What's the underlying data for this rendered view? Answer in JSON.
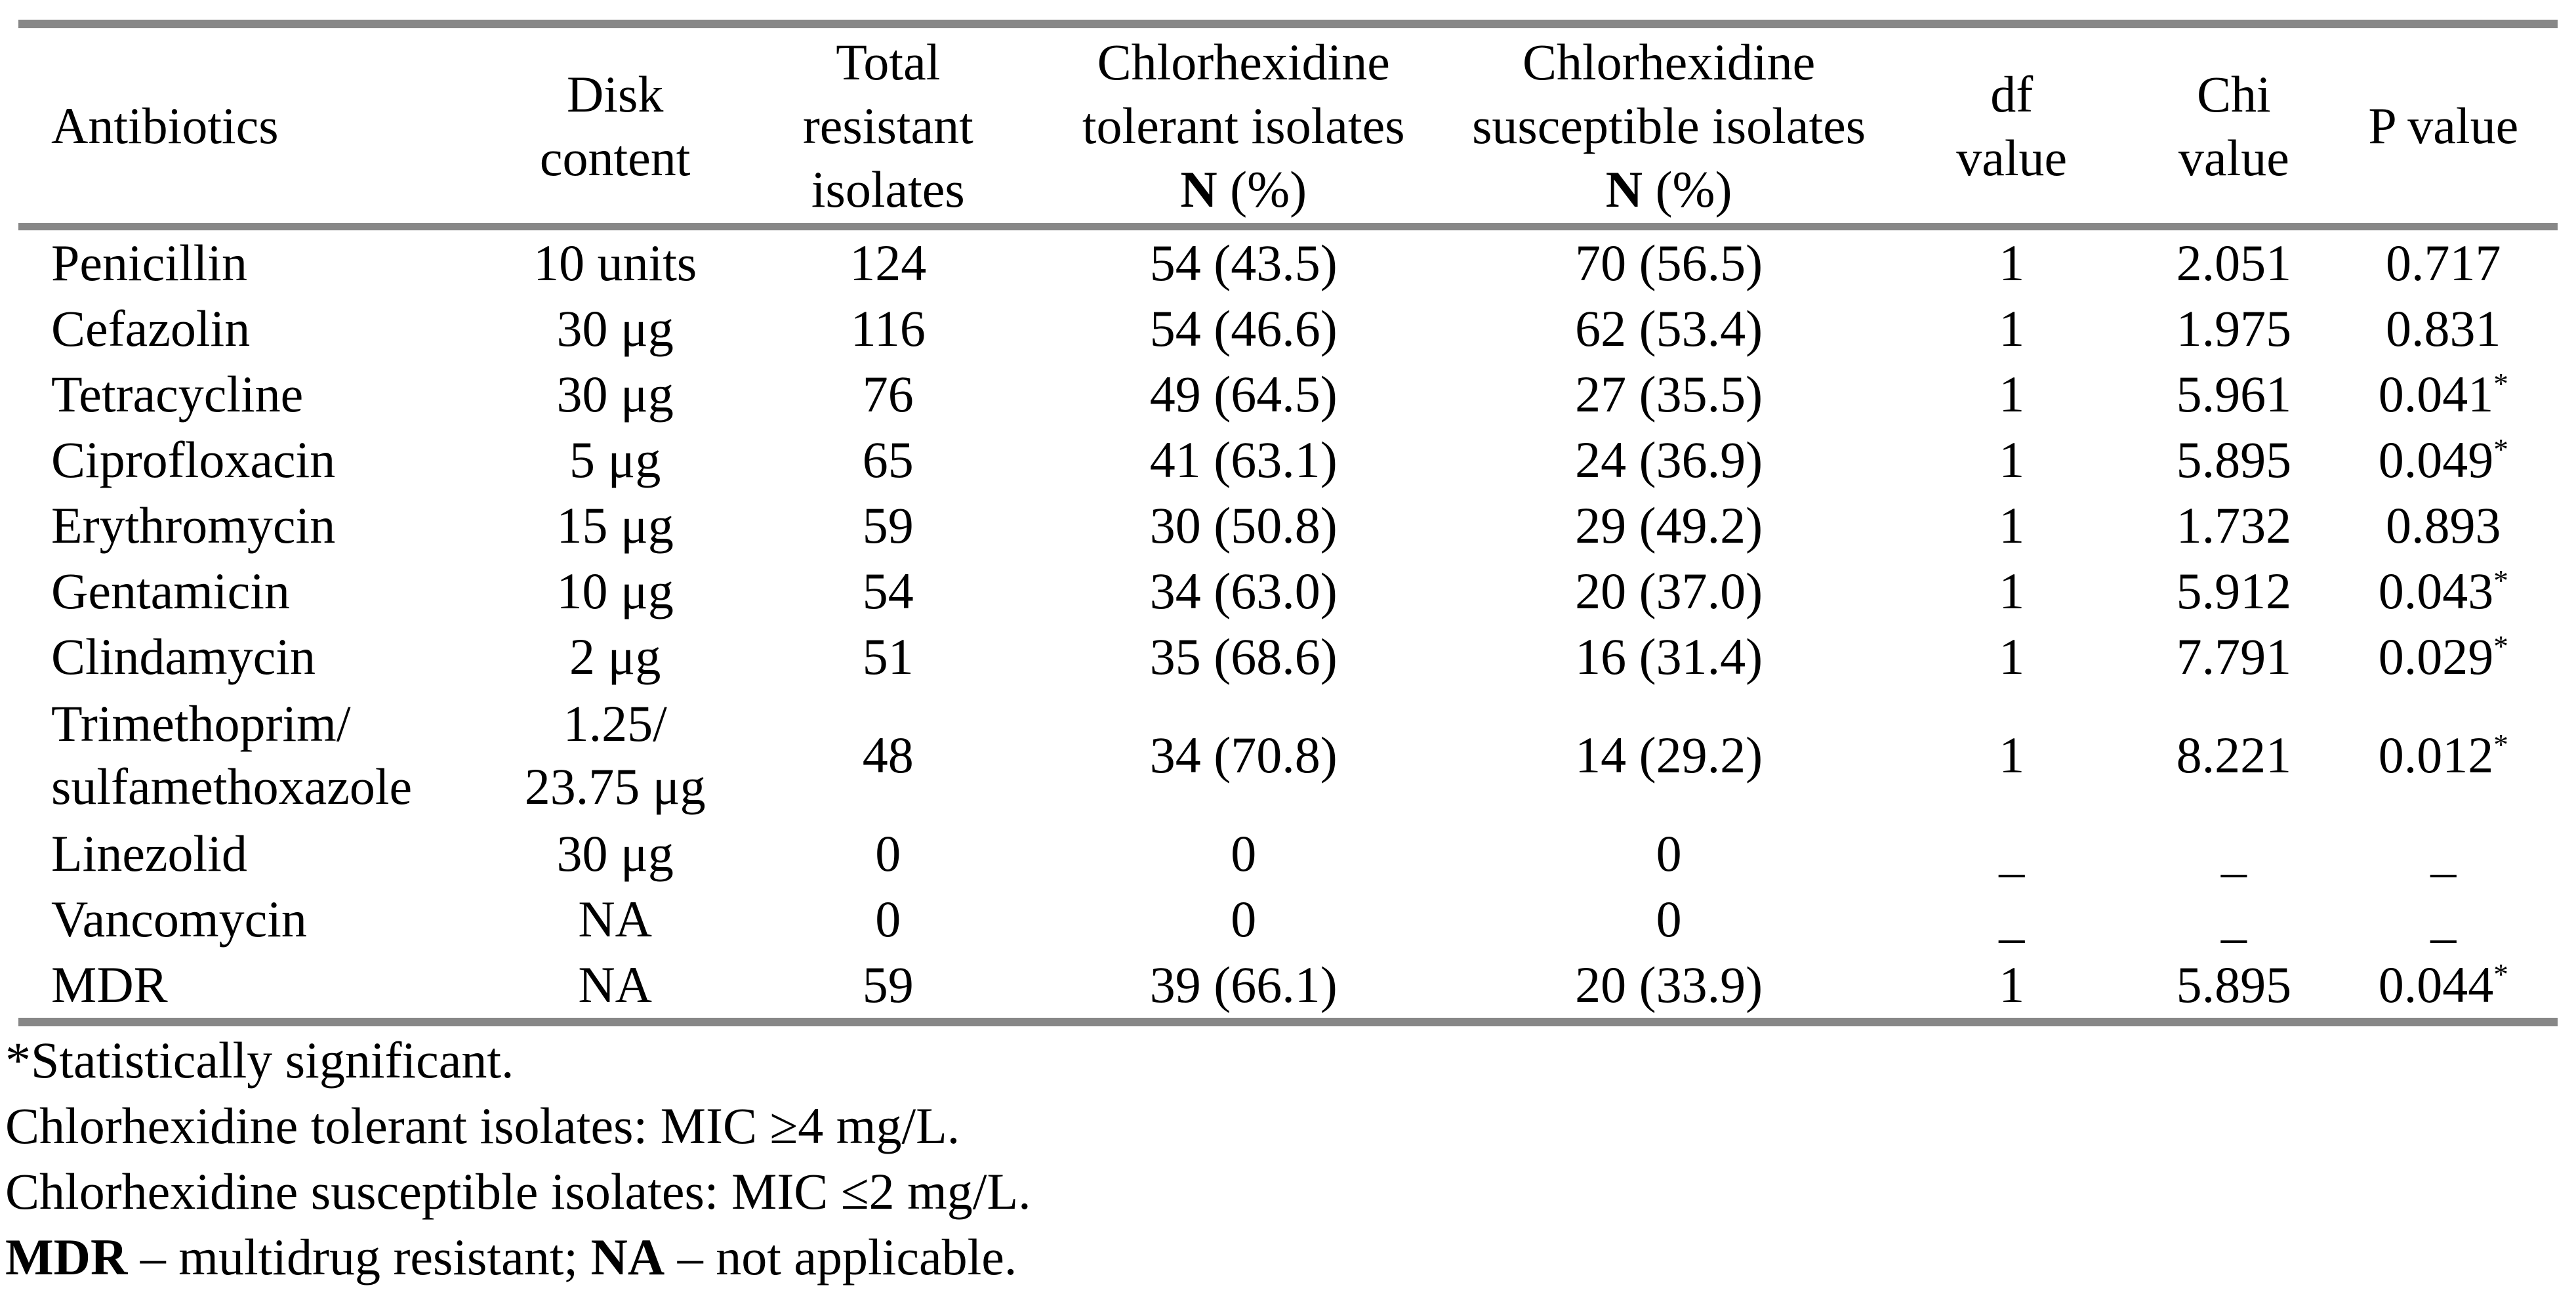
{
  "colors": {
    "rule_gray": "#878787",
    "text": "#000000",
    "background": "#ffffff"
  },
  "table": {
    "headers": [
      {
        "text": "Antibiotics"
      },
      {
        "text": "Disk\ncontent"
      },
      {
        "text": "Total\nresistant\nisolates"
      },
      {
        "text": "Chlorhexidine\ntolerant isolates",
        "n_label": "N",
        "pct_label": " (%)"
      },
      {
        "text": "Chlorhexidine\nsusceptible isolates",
        "n_label": "N",
        "pct_label": " (%)"
      },
      {
        "text": "df\nvalue"
      },
      {
        "text": "Chi\nvalue"
      },
      {
        "text": "P value"
      }
    ],
    "rows": [
      {
        "cells": [
          "Penicillin",
          "10 units",
          "124",
          "54 (43.5)",
          "70 (56.5)",
          "1",
          "2.051",
          "0.717"
        ],
        "star": ""
      },
      {
        "cells": [
          "Cefazolin",
          "30 μg",
          "116",
          "54 (46.6)",
          "62 (53.4)",
          "1",
          "1.975",
          "0.831"
        ],
        "star": ""
      },
      {
        "cells": [
          "Tetracycline",
          "30 μg",
          "76",
          "49 (64.5)",
          "27 (35.5)",
          "1",
          "5.961",
          "0.041"
        ],
        "star": "*"
      },
      {
        "cells": [
          "Ciprofloxacin",
          "5 μg",
          "65",
          "41 (63.1)",
          "24 (36.9)",
          "1",
          "5.895",
          "0.049"
        ],
        "star": "*"
      },
      {
        "cells": [
          "Erythromycin",
          "15 μg",
          "59",
          "30 (50.8)",
          "29 (49.2)",
          "1",
          "1.732",
          "0.893"
        ],
        "star": ""
      },
      {
        "cells": [
          "Gentamicin",
          "10 μg",
          "54",
          "34 (63.0)",
          "20 (37.0)",
          "1",
          "5.912",
          "0.043"
        ],
        "star": "*"
      },
      {
        "cells": [
          "Clindamycin",
          "2 μg",
          "51",
          "35 (68.6)",
          "16 (31.4)",
          "1",
          "7.791",
          "0.029"
        ],
        "star": "*"
      },
      {
        "cells": [
          "Trimethoprim/\nsulfamethoxazole",
          "1.25/\n23.75 μg",
          "48",
          "34 (70.8)",
          "14 (29.2)",
          "1",
          "8.221",
          "0.012"
        ],
        "star": "*"
      },
      {
        "cells": [
          "Linezolid",
          "30 μg",
          "0",
          "0",
          "0",
          "_",
          "_",
          "_"
        ],
        "star": ""
      },
      {
        "cells": [
          "Vancomycin",
          "NA",
          "0",
          "0",
          "0",
          "_",
          "_",
          "_"
        ],
        "star": ""
      },
      {
        "cells": [
          "MDR",
          "NA",
          "59",
          "39 (66.1)",
          "20 (33.9)",
          "1",
          "5.895",
          "0.044"
        ],
        "star": "*"
      }
    ]
  },
  "footnotes": {
    "line1": "*Statistically significant.",
    "line2": "Chlorhexidine tolerant isolates: MIC ≥4 mg/L.",
    "line3": "Chlorhexidine susceptible isolates: MIC ≤2 mg/L.",
    "line4_parts": [
      {
        "text": "MDR"
      },
      {
        "text": " – multidrug resistant; "
      },
      {
        "text": "NA"
      },
      {
        "text": " – not applicable."
      }
    ]
  }
}
